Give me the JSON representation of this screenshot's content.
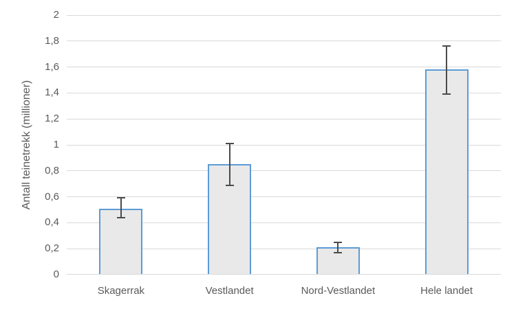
{
  "chart_data": {
    "type": "bar",
    "title": "",
    "categories": [
      "Skagerrak",
      "Vestlandet",
      "Nord-Vestlandet",
      "Hele landet"
    ],
    "values": [
      0.51,
      0.85,
      0.21,
      1.58
    ],
    "error_low": [
      0.44,
      0.69,
      0.17,
      1.39
    ],
    "error_high": [
      0.59,
      1.01,
      0.25,
      1.76
    ],
    "xlabel": "",
    "ylabel": "Antall teinetrekk (millioner)",
    "ylim": [
      0,
      2
    ],
    "ytick_step": 0.2,
    "ytick_labels": [
      "0",
      "0,2",
      "0,4",
      "0,6",
      "0,8",
      "1",
      "1,2",
      "1,4",
      "1,6",
      "1,8",
      "2"
    ],
    "grid": true,
    "legend": false,
    "colors": {
      "bar_fill": "#E9E9E9",
      "bar_border": "#5B9BD5",
      "error_bar": "#4A4A4A",
      "gridline": "#D9D9D9",
      "axis_line": "#D9D9D9",
      "text": "#595959"
    }
  }
}
